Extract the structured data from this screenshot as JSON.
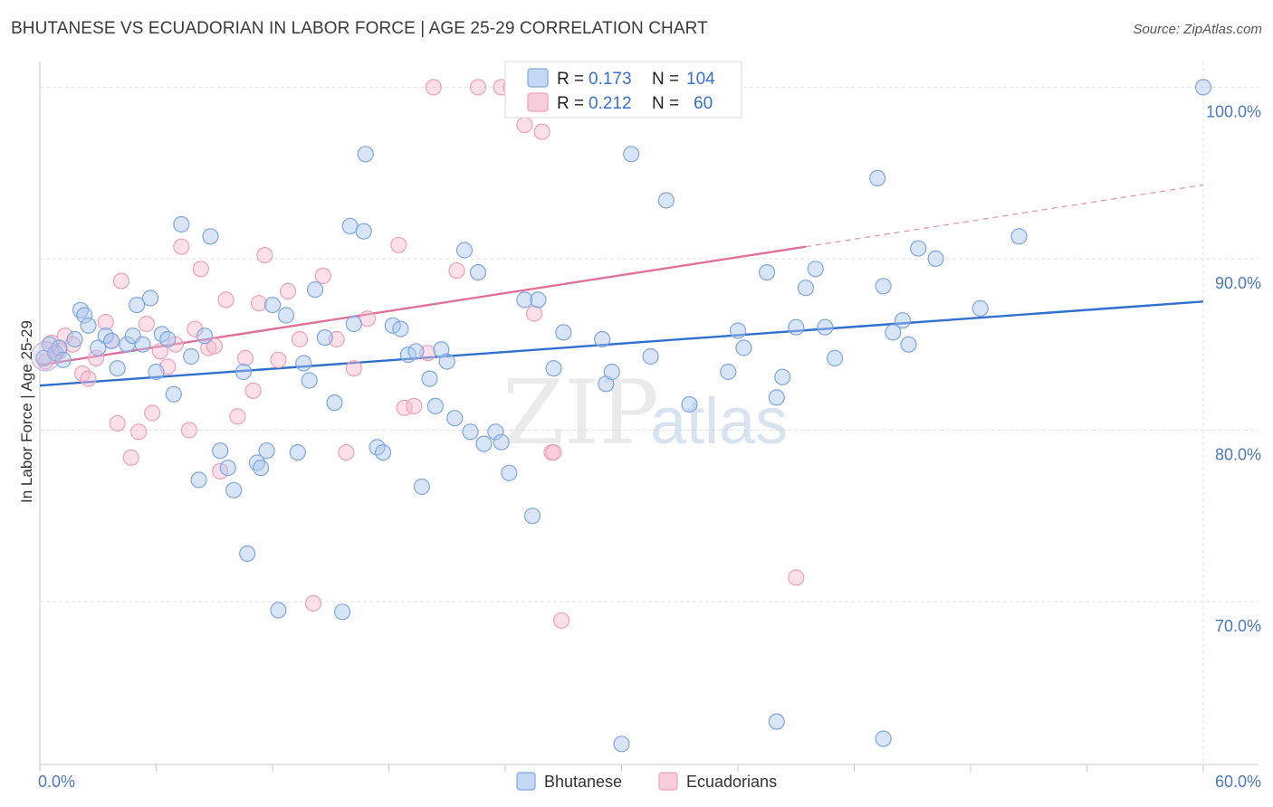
{
  "header": {
    "title": "BHUTANESE VS ECUADORIAN IN LABOR FORCE | AGE 25-29 CORRELATION CHART",
    "source": "Source: ZipAtlas.com"
  },
  "watermark": {
    "zip": "ZIP",
    "atlas": "atlas"
  },
  "legend": {
    "rows": [
      {
        "r_label": "R =",
        "r_value": "0.173",
        "n_label": "N =",
        "n_value": "104",
        "color": "#7ea6e0"
      },
      {
        "r_label": "R =",
        "r_value": "0.212",
        "n_label": "N =",
        "n_value": "60",
        "color": "#f0a0ba"
      }
    ]
  },
  "bottom_legend": [
    {
      "label": "Bhutanese",
      "color": "#7ea6e0"
    },
    {
      "label": "Ecuadorians",
      "color": "#f0a0ba"
    }
  ],
  "chart_data": {
    "type": "scatter",
    "title": "BHUTANESE VS ECUADORIAN IN LABOR FORCE | AGE 25-29 CORRELATION CHART",
    "xlabel": "",
    "ylabel": "In Labor Force | Age 25-29",
    "xlim": [
      0,
      60
    ],
    "ylim": [
      60.5,
      101.5
    ],
    "x_tick_labels": [
      {
        "value": 0,
        "label": "0.0%"
      },
      {
        "value": 60,
        "label": "60.0%"
      }
    ],
    "y_tick_labels": [
      {
        "value": 70,
        "label": "70.0%"
      },
      {
        "value": 80,
        "label": "80.0%"
      },
      {
        "value": 90,
        "label": "90.0%"
      },
      {
        "value": 100,
        "label": "100.0%"
      }
    ],
    "grid": true,
    "legend_position": "top-center",
    "series": [
      {
        "name": "Bhutanese",
        "color": "#7ea6e0",
        "line_color": "#2f6fcf",
        "trend": {
          "x0": 0,
          "y0": 82.6,
          "x1": 60,
          "y1": 87.5
        },
        "points": [
          [
            0.2,
            84.2
          ],
          [
            0.5,
            85.0
          ],
          [
            0.8,
            84.5
          ],
          [
            1.0,
            84.8
          ],
          [
            1.2,
            84.1
          ],
          [
            1.8,
            85.3
          ],
          [
            2.1,
            87.0
          ],
          [
            2.3,
            86.7
          ],
          [
            2.5,
            86.1
          ],
          [
            3.0,
            84.8
          ],
          [
            3.4,
            85.5
          ],
          [
            3.7,
            85.2
          ],
          [
            4.0,
            83.6
          ],
          [
            4.5,
            85.0
          ],
          [
            4.8,
            85.5
          ],
          [
            5.0,
            87.3
          ],
          [
            5.3,
            85.0
          ],
          [
            5.7,
            87.7
          ],
          [
            6.0,
            83.4
          ],
          [
            6.3,
            85.6
          ],
          [
            6.6,
            85.3
          ],
          [
            6.9,
            82.1
          ],
          [
            7.3,
            92.0
          ],
          [
            7.8,
            84.3
          ],
          [
            8.2,
            77.1
          ],
          [
            8.5,
            85.5
          ],
          [
            8.8,
            91.3
          ],
          [
            9.3,
            78.8
          ],
          [
            9.7,
            77.8
          ],
          [
            10.0,
            76.5
          ],
          [
            10.5,
            83.4
          ],
          [
            10.7,
            72.8
          ],
          [
            11.2,
            78.1
          ],
          [
            11.4,
            77.8
          ],
          [
            11.7,
            78.8
          ],
          [
            12.0,
            87.3
          ],
          [
            12.3,
            69.5
          ],
          [
            12.7,
            86.7
          ],
          [
            13.3,
            78.7
          ],
          [
            13.6,
            83.9
          ],
          [
            13.9,
            82.9
          ],
          [
            14.2,
            88.2
          ],
          [
            14.7,
            85.4
          ],
          [
            15.2,
            81.6
          ],
          [
            15.6,
            69.4
          ],
          [
            16.0,
            91.9
          ],
          [
            16.2,
            86.2
          ],
          [
            16.7,
            91.6
          ],
          [
            16.8,
            96.1
          ],
          [
            17.4,
            79.0
          ],
          [
            17.7,
            78.7
          ],
          [
            18.2,
            86.1
          ],
          [
            18.6,
            85.9
          ],
          [
            19.0,
            84.4
          ],
          [
            19.4,
            84.6
          ],
          [
            19.7,
            76.7
          ],
          [
            20.1,
            83.0
          ],
          [
            20.4,
            81.4
          ],
          [
            20.7,
            84.7
          ],
          [
            21.0,
            84.0
          ],
          [
            21.4,
            80.7
          ],
          [
            21.9,
            90.5
          ],
          [
            22.2,
            79.9
          ],
          [
            22.6,
            89.2
          ],
          [
            22.9,
            79.2
          ],
          [
            23.5,
            79.9
          ],
          [
            23.8,
            79.3
          ],
          [
            24.2,
            77.5
          ],
          [
            25.0,
            87.6
          ],
          [
            25.4,
            75.0
          ],
          [
            25.7,
            87.6
          ],
          [
            26.5,
            83.6
          ],
          [
            27.0,
            85.7
          ],
          [
            29.0,
            85.3
          ],
          [
            29.2,
            82.7
          ],
          [
            29.5,
            83.4
          ],
          [
            30.5,
            96.1
          ],
          [
            31.5,
            84.3
          ],
          [
            32.3,
            93.4
          ],
          [
            33.5,
            81.5
          ],
          [
            35.5,
            83.4
          ],
          [
            36.0,
            85.8
          ],
          [
            36.3,
            84.8
          ],
          [
            37.5,
            89.2
          ],
          [
            38.0,
            81.9
          ],
          [
            38.3,
            83.1
          ],
          [
            39.0,
            86.0
          ],
          [
            39.5,
            88.3
          ],
          [
            40.0,
            89.4
          ],
          [
            40.5,
            86.0
          ],
          [
            41.0,
            84.2
          ],
          [
            43.2,
            94.7
          ],
          [
            43.5,
            88.4
          ],
          [
            44.0,
            85.7
          ],
          [
            44.5,
            86.4
          ],
          [
            44.8,
            85.0
          ],
          [
            45.3,
            90.6
          ],
          [
            46.2,
            90.0
          ],
          [
            48.5,
            87.1
          ],
          [
            50.5,
            91.3
          ],
          [
            60.0,
            100.0
          ],
          [
            30.0,
            61.7
          ],
          [
            38.0,
            63.0
          ],
          [
            43.5,
            62.0
          ]
        ]
      },
      {
        "name": "Ecuadorians",
        "color": "#f0a0ba",
        "line_color": "#e0709a",
        "trend": {
          "x0": 0,
          "y0": 83.8,
          "x1": 39.5,
          "y1": 90.7
        },
        "trend_dashed": {
          "x0": 39.5,
          "y0": 90.7,
          "x1": 60,
          "y1": 94.3
        },
        "points": [
          [
            0.3,
            84.0
          ],
          [
            0.6,
            85.1
          ],
          [
            1.0,
            84.6
          ],
          [
            1.3,
            85.5
          ],
          [
            1.7,
            85.0
          ],
          [
            2.2,
            83.3
          ],
          [
            2.5,
            83.0
          ],
          [
            2.9,
            84.2
          ],
          [
            3.4,
            86.3
          ],
          [
            3.7,
            85.2
          ],
          [
            4.0,
            80.4
          ],
          [
            4.2,
            88.7
          ],
          [
            4.7,
            78.4
          ],
          [
            5.1,
            79.9
          ],
          [
            5.5,
            86.2
          ],
          [
            5.8,
            81.0
          ],
          [
            6.2,
            84.6
          ],
          [
            6.6,
            83.7
          ],
          [
            7.0,
            85.0
          ],
          [
            7.3,
            90.7
          ],
          [
            7.7,
            80.0
          ],
          [
            8.0,
            85.9
          ],
          [
            8.3,
            89.4
          ],
          [
            8.7,
            84.8
          ],
          [
            9.0,
            84.9
          ],
          [
            9.3,
            77.6
          ],
          [
            9.6,
            87.6
          ],
          [
            10.2,
            80.8
          ],
          [
            10.6,
            84.2
          ],
          [
            11.0,
            82.3
          ],
          [
            11.3,
            87.4
          ],
          [
            11.6,
            90.2
          ],
          [
            12.3,
            84.1
          ],
          [
            12.8,
            88.1
          ],
          [
            13.4,
            85.3
          ],
          [
            14.1,
            69.9
          ],
          [
            14.6,
            89.0
          ],
          [
            15.3,
            85.3
          ],
          [
            15.8,
            78.7
          ],
          [
            16.2,
            83.6
          ],
          [
            16.9,
            86.5
          ],
          [
            18.5,
            90.8
          ],
          [
            18.8,
            81.3
          ],
          [
            19.3,
            81.4
          ],
          [
            20.3,
            100.0
          ],
          [
            21.5,
            89.3
          ],
          [
            22.6,
            100.0
          ],
          [
            23.8,
            100.0
          ],
          [
            24.3,
            100.0
          ],
          [
            24.6,
            100.0
          ],
          [
            25.0,
            97.8
          ],
          [
            25.5,
            86.8
          ],
          [
            25.9,
            97.4
          ],
          [
            26.4,
            78.7
          ],
          [
            26.5,
            78.7
          ],
          [
            26.9,
            68.9
          ],
          [
            28.8,
            100.0
          ],
          [
            35.5,
            100.0
          ],
          [
            39.0,
            71.4
          ],
          [
            20.0,
            84.5
          ]
        ]
      }
    ]
  }
}
